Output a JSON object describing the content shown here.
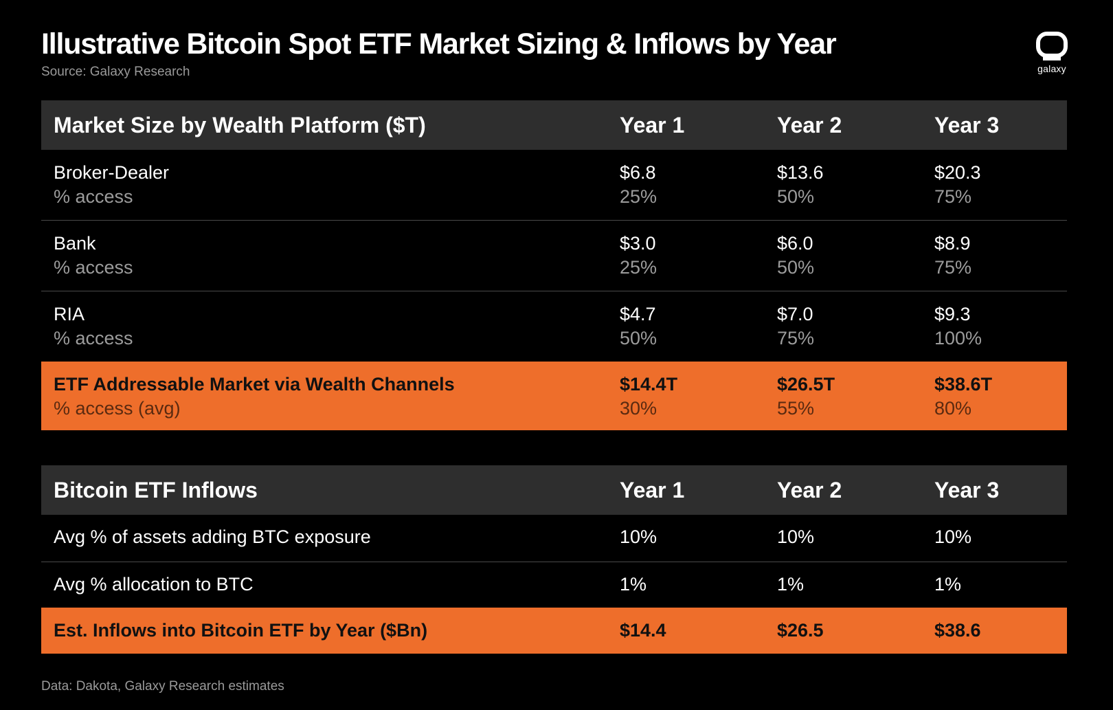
{
  "header": {
    "title": "Illustrative Bitcoin Spot ETF Market Sizing & Inflows by Year",
    "source": "Source: Galaxy Research",
    "logo_text": "galaxy"
  },
  "colors": {
    "background": "#000000",
    "header_row": "#2e2e2e",
    "accent": "#ee6e2b",
    "muted_text": "#9c9c9c"
  },
  "market_table": {
    "headers": [
      "Market Size by Wealth Platform ($T)",
      "Year 1",
      "Year 2",
      "Year 3"
    ],
    "rows": [
      {
        "label": "Broker-Dealer",
        "sublabel": "% access",
        "values": [
          "$6.8",
          "$13.6",
          "$20.3"
        ],
        "subvalues": [
          "25%",
          "50%",
          "75%"
        ]
      },
      {
        "label": "Bank",
        "sublabel": "% access",
        "values": [
          "$3.0",
          "$6.0",
          "$8.9"
        ],
        "subvalues": [
          "25%",
          "50%",
          "75%"
        ]
      },
      {
        "label": "RIA",
        "sublabel": "% access",
        "values": [
          "$4.7",
          "$7.0",
          "$9.3"
        ],
        "subvalues": [
          "50%",
          "75%",
          "100%"
        ]
      }
    ],
    "total": {
      "label": "ETF Addressable Market via Wealth Channels",
      "sublabel": "% access (avg)",
      "values": [
        "$14.4T",
        "$26.5T",
        "$38.6T"
      ],
      "subvalues": [
        "30%",
        "55%",
        "80%"
      ]
    }
  },
  "inflows_table": {
    "headers": [
      "Bitcoin ETF Inflows",
      "Year 1",
      "Year 2",
      "Year 3"
    ],
    "rows": [
      {
        "label": "Avg % of assets adding BTC exposure",
        "values": [
          "10%",
          "10%",
          "10%"
        ]
      },
      {
        "label": "Avg % allocation to BTC",
        "values": [
          "1%",
          "1%",
          "1%"
        ]
      }
    ],
    "total": {
      "label": "Est. Inflows into Bitcoin ETF by Year ($Bn)",
      "values": [
        "$14.4",
        "$26.5",
        "$38.6"
      ]
    }
  },
  "footer": {
    "note": "Data: Dakota, Galaxy Research estimates"
  }
}
